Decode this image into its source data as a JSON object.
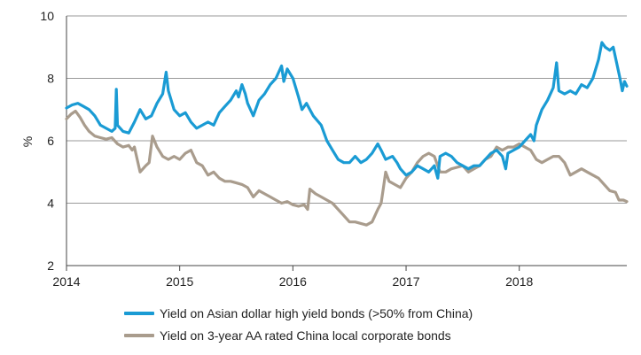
{
  "chart_data": {
    "type": "line",
    "title": "",
    "xlabel": "",
    "ylabel": "%",
    "ylim": [
      2,
      10
    ],
    "yticks": [
      2,
      4,
      6,
      8,
      10
    ],
    "xlim": [
      2014.0,
      2018.95
    ],
    "xticks": [
      "2014",
      "2015",
      "2016",
      "2017",
      "2018"
    ],
    "grid": "horizontal",
    "legend_position": "bottom",
    "series": [
      {
        "name": "Yield on Asian dollar high yield bonds (>50% from China)",
        "color": "#1a9bd4",
        "points": [
          [
            2014.0,
            7.05
          ],
          [
            2014.05,
            7.15
          ],
          [
            2014.1,
            7.2
          ],
          [
            2014.15,
            7.1
          ],
          [
            2014.2,
            7.0
          ],
          [
            2014.25,
            6.8
          ],
          [
            2014.3,
            6.5
          ],
          [
            2014.35,
            6.4
          ],
          [
            2014.4,
            6.3
          ],
          [
            2014.43,
            6.4
          ],
          [
            2014.44,
            7.65
          ],
          [
            2014.45,
            6.5
          ],
          [
            2014.5,
            6.3
          ],
          [
            2014.55,
            6.25
          ],
          [
            2014.6,
            6.6
          ],
          [
            2014.65,
            7.0
          ],
          [
            2014.7,
            6.7
          ],
          [
            2014.75,
            6.8
          ],
          [
            2014.8,
            7.2
          ],
          [
            2014.85,
            7.5
          ],
          [
            2014.88,
            8.2
          ],
          [
            2014.9,
            7.6
          ],
          [
            2014.95,
            7.0
          ],
          [
            2015.0,
            6.8
          ],
          [
            2015.05,
            6.9
          ],
          [
            2015.1,
            6.6
          ],
          [
            2015.15,
            6.4
          ],
          [
            2015.2,
            6.5
          ],
          [
            2015.25,
            6.6
          ],
          [
            2015.3,
            6.5
          ],
          [
            2015.35,
            6.9
          ],
          [
            2015.4,
            7.1
          ],
          [
            2015.45,
            7.3
          ],
          [
            2015.5,
            7.6
          ],
          [
            2015.52,
            7.4
          ],
          [
            2015.55,
            7.8
          ],
          [
            2015.58,
            7.5
          ],
          [
            2015.6,
            7.2
          ],
          [
            2015.65,
            6.8
          ],
          [
            2015.7,
            7.3
          ],
          [
            2015.75,
            7.5
          ],
          [
            2015.8,
            7.8
          ],
          [
            2015.85,
            8.0
          ],
          [
            2015.9,
            8.4
          ],
          [
            2015.92,
            7.9
          ],
          [
            2015.95,
            8.3
          ],
          [
            2016.0,
            8.0
          ],
          [
            2016.05,
            7.4
          ],
          [
            2016.08,
            7.0
          ],
          [
            2016.12,
            7.2
          ],
          [
            2016.18,
            6.8
          ],
          [
            2016.25,
            6.5
          ],
          [
            2016.3,
            6.0
          ],
          [
            2016.35,
            5.7
          ],
          [
            2016.4,
            5.4
          ],
          [
            2016.45,
            5.3
          ],
          [
            2016.5,
            5.3
          ],
          [
            2016.55,
            5.5
          ],
          [
            2016.6,
            5.3
          ],
          [
            2016.65,
            5.4
          ],
          [
            2016.7,
            5.6
          ],
          [
            2016.75,
            5.9
          ],
          [
            2016.78,
            5.7
          ],
          [
            2016.82,
            5.4
          ],
          [
            2016.88,
            5.5
          ],
          [
            2016.92,
            5.3
          ],
          [
            2016.95,
            5.1
          ],
          [
            2017.0,
            4.9
          ],
          [
            2017.05,
            5.0
          ],
          [
            2017.1,
            5.2
          ],
          [
            2017.15,
            5.1
          ],
          [
            2017.2,
            5.0
          ],
          [
            2017.25,
            5.2
          ],
          [
            2017.28,
            4.8
          ],
          [
            2017.3,
            5.5
          ],
          [
            2017.35,
            5.6
          ],
          [
            2017.4,
            5.5
          ],
          [
            2017.45,
            5.3
          ],
          [
            2017.5,
            5.2
          ],
          [
            2017.55,
            5.1
          ],
          [
            2017.6,
            5.2
          ],
          [
            2017.65,
            5.2
          ],
          [
            2017.7,
            5.4
          ],
          [
            2017.75,
            5.6
          ],
          [
            2017.8,
            5.7
          ],
          [
            2017.85,
            5.5
          ],
          [
            2017.88,
            5.1
          ],
          [
            2017.9,
            5.6
          ],
          [
            2017.95,
            5.7
          ],
          [
            2018.0,
            5.8
          ],
          [
            2018.05,
            6.0
          ],
          [
            2018.1,
            6.2
          ],
          [
            2018.13,
            6.0
          ],
          [
            2018.15,
            6.5
          ],
          [
            2018.2,
            7.0
          ],
          [
            2018.25,
            7.3
          ],
          [
            2018.3,
            7.7
          ],
          [
            2018.33,
            8.5
          ],
          [
            2018.35,
            7.6
          ],
          [
            2018.4,
            7.5
          ],
          [
            2018.45,
            7.6
          ],
          [
            2018.5,
            7.5
          ],
          [
            2018.55,
            7.8
          ],
          [
            2018.6,
            7.7
          ],
          [
            2018.65,
            8.0
          ],
          [
            2018.7,
            8.6
          ],
          [
            2018.73,
            9.15
          ],
          [
            2018.76,
            9.0
          ],
          [
            2018.8,
            8.9
          ],
          [
            2018.83,
            9.0
          ],
          [
            2018.86,
            8.5
          ],
          [
            2018.89,
            8.0
          ],
          [
            2018.91,
            7.6
          ],
          [
            2018.93,
            7.9
          ],
          [
            2018.95,
            7.75
          ]
        ]
      },
      {
        "name": "Yield on 3-year AA rated China local corporate bonds",
        "color": "#a99c8d",
        "points": [
          [
            2014.0,
            6.7
          ],
          [
            2014.04,
            6.85
          ],
          [
            2014.08,
            6.95
          ],
          [
            2014.12,
            6.75
          ],
          [
            2014.16,
            6.5
          ],
          [
            2014.2,
            6.3
          ],
          [
            2014.25,
            6.15
          ],
          [
            2014.3,
            6.1
          ],
          [
            2014.35,
            6.05
          ],
          [
            2014.4,
            6.1
          ],
          [
            2014.45,
            5.9
          ],
          [
            2014.5,
            5.8
          ],
          [
            2014.55,
            5.85
          ],
          [
            2014.58,
            5.7
          ],
          [
            2014.6,
            5.8
          ],
          [
            2014.65,
            5.0
          ],
          [
            2014.7,
            5.2
          ],
          [
            2014.73,
            5.3
          ],
          [
            2014.76,
            6.15
          ],
          [
            2014.8,
            5.8
          ],
          [
            2014.85,
            5.5
          ],
          [
            2014.9,
            5.4
          ],
          [
            2014.95,
            5.5
          ],
          [
            2015.0,
            5.4
          ],
          [
            2015.05,
            5.6
          ],
          [
            2015.1,
            5.7
          ],
          [
            2015.15,
            5.3
          ],
          [
            2015.2,
            5.2
          ],
          [
            2015.25,
            4.9
          ],
          [
            2015.3,
            5.0
          ],
          [
            2015.35,
            4.8
          ],
          [
            2015.4,
            4.7
          ],
          [
            2015.45,
            4.7
          ],
          [
            2015.5,
            4.65
          ],
          [
            2015.55,
            4.6
          ],
          [
            2015.6,
            4.5
          ],
          [
            2015.65,
            4.2
          ],
          [
            2015.7,
            4.4
          ],
          [
            2015.75,
            4.3
          ],
          [
            2015.8,
            4.2
          ],
          [
            2015.85,
            4.1
          ],
          [
            2015.9,
            4.0
          ],
          [
            2015.95,
            4.05
          ],
          [
            2016.0,
            3.95
          ],
          [
            2016.05,
            3.9
          ],
          [
            2016.1,
            3.95
          ],
          [
            2016.13,
            3.8
          ],
          [
            2016.15,
            4.45
          ],
          [
            2016.2,
            4.3
          ],
          [
            2016.25,
            4.2
          ],
          [
            2016.3,
            4.1
          ],
          [
            2016.35,
            4.0
          ],
          [
            2016.4,
            3.8
          ],
          [
            2016.45,
            3.6
          ],
          [
            2016.5,
            3.4
          ],
          [
            2016.55,
            3.4
          ],
          [
            2016.6,
            3.35
          ],
          [
            2016.65,
            3.3
          ],
          [
            2016.7,
            3.4
          ],
          [
            2016.75,
            3.8
          ],
          [
            2016.78,
            4.0
          ],
          [
            2016.8,
            4.5
          ],
          [
            2016.82,
            5.0
          ],
          [
            2016.85,
            4.7
          ],
          [
            2016.9,
            4.6
          ],
          [
            2016.95,
            4.5
          ],
          [
            2017.0,
            4.8
          ],
          [
            2017.05,
            5.0
          ],
          [
            2017.1,
            5.3
          ],
          [
            2017.15,
            5.5
          ],
          [
            2017.2,
            5.6
          ],
          [
            2017.25,
            5.5
          ],
          [
            2017.3,
            5.0
          ],
          [
            2017.35,
            5.0
          ],
          [
            2017.4,
            5.1
          ],
          [
            2017.45,
            5.15
          ],
          [
            2017.5,
            5.2
          ],
          [
            2017.55,
            5.0
          ],
          [
            2017.6,
            5.1
          ],
          [
            2017.65,
            5.2
          ],
          [
            2017.7,
            5.4
          ],
          [
            2017.75,
            5.5
          ],
          [
            2017.8,
            5.8
          ],
          [
            2017.85,
            5.7
          ],
          [
            2017.9,
            5.8
          ],
          [
            2017.95,
            5.8
          ],
          [
            2018.0,
            5.9
          ],
          [
            2018.05,
            5.8
          ],
          [
            2018.1,
            5.7
          ],
          [
            2018.15,
            5.4
          ],
          [
            2018.2,
            5.3
          ],
          [
            2018.25,
            5.4
          ],
          [
            2018.3,
            5.5
          ],
          [
            2018.35,
            5.5
          ],
          [
            2018.4,
            5.3
          ],
          [
            2018.45,
            4.9
          ],
          [
            2018.5,
            5.0
          ],
          [
            2018.55,
            5.1
          ],
          [
            2018.6,
            5.0
          ],
          [
            2018.65,
            4.9
          ],
          [
            2018.7,
            4.8
          ],
          [
            2018.75,
            4.6
          ],
          [
            2018.8,
            4.4
          ],
          [
            2018.85,
            4.35
          ],
          [
            2018.88,
            4.1
          ],
          [
            2018.92,
            4.1
          ],
          [
            2018.95,
            4.05
          ]
        ]
      }
    ]
  }
}
